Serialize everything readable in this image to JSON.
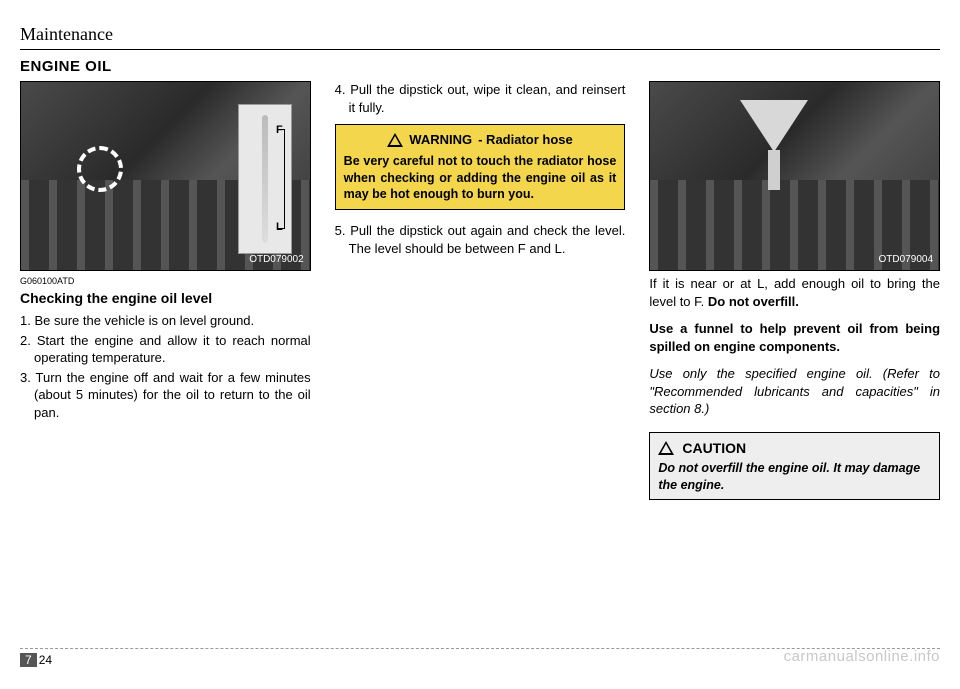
{
  "header": {
    "chapter": "Maintenance"
  },
  "section": {
    "title": "ENGINE OIL"
  },
  "col1": {
    "fig_code": "OTD079002",
    "ref_code": "G060100ATD",
    "subhead": "Checking the engine oil level",
    "steps": [
      "1. Be sure the vehicle is on level ground.",
      "2. Start the engine and allow it to reach normal operating temperature.",
      "3. Turn the engine off and wait for a few minutes (about 5 minutes) for the oil to return to the oil pan."
    ],
    "dip_f": "F",
    "dip_l": "L"
  },
  "col2": {
    "step4": "4. Pull the dipstick out, wipe it clean, and reinsert it fully.",
    "warning": {
      "head_main": "WARNING",
      "head_sub": "- Radiator hose",
      "body": "Be very careful not to touch the radiator hose when checking or adding the engine oil as it may be hot enough to burn you."
    },
    "step5": "5. Pull the dipstick out again and check the level. The level should be between F and L."
  },
  "col3": {
    "fig_code": "OTD079004",
    "para1a": "If it is near or at L, add enough oil to bring the level to F. ",
    "para1b": "Do not overfill.",
    "para2": "Use a funnel to help prevent oil from being spilled on engine components.",
    "para3": "Use only the specified engine oil. (Refer to \"Recommended lubricants and capacities\" in section 8.)",
    "caution": {
      "head": "CAUTION",
      "body": "Do not overfill the engine oil. It may damage the engine."
    }
  },
  "footer": {
    "section_num": "7",
    "page_num": "24"
  },
  "watermark": "carmanualsonline.info",
  "colors": {
    "warning_bg": "#f3d64b",
    "caution_bg": "#eeeeee",
    "rule": "#000000",
    "dash": "#999999"
  }
}
